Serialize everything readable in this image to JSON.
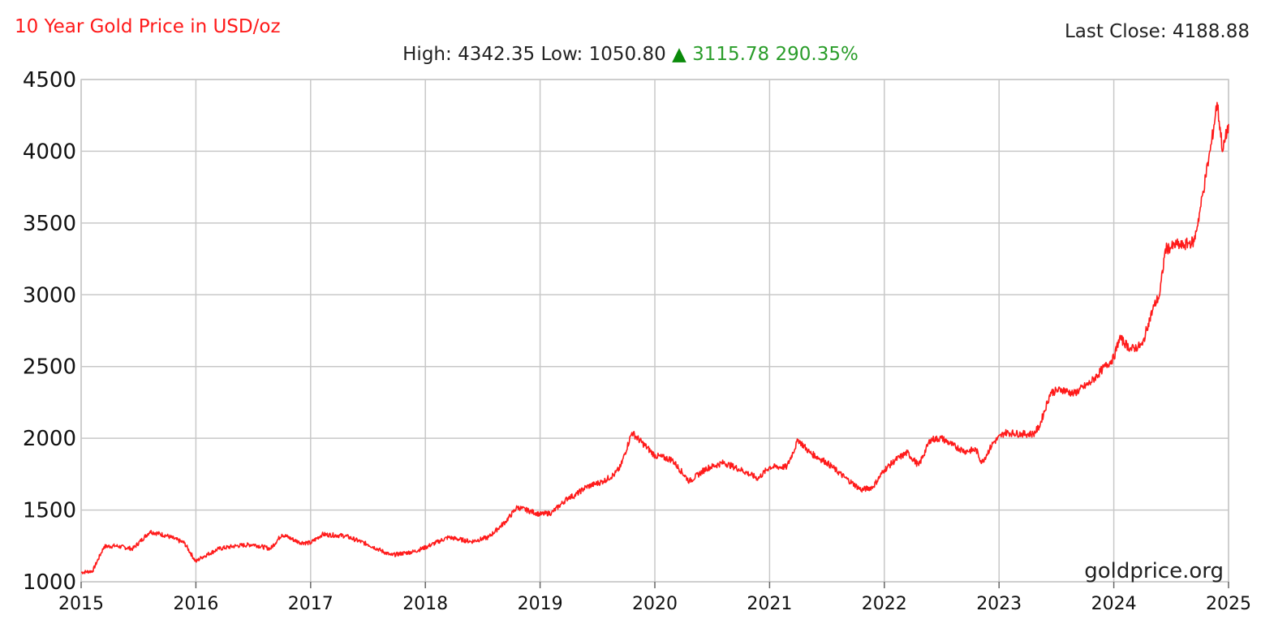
{
  "colors": {
    "series": "#ff1a1a",
    "grid": "#c8c8c8",
    "up": "#2a9d2a",
    "up_arrow": "#0a8a0a"
  },
  "header": {
    "title": "10 Year Gold Price in USD/oz",
    "high_label": "High:",
    "high_value": "4342.35",
    "low_label": "Low:",
    "low_value": "1050.80",
    "change_arrow": "▲",
    "change_value": "3115.78",
    "change_percent": "290.35%",
    "last_close_label": "Last Close:",
    "last_close_value": "4188.88"
  },
  "watermark": "goldprice.org",
  "chart_data": {
    "type": "line",
    "title": "10 Year Gold Price in USD/oz",
    "xlabel": "",
    "ylabel": "",
    "xlim": [
      2015,
      2025
    ],
    "ylim": [
      1000,
      4500
    ],
    "xticks": [
      2015,
      2016,
      2017,
      2018,
      2019,
      2020,
      2021,
      2022,
      2023,
      2024,
      2025
    ],
    "yticks": [
      1000,
      1500,
      2000,
      2500,
      3000,
      3500,
      4000,
      4500
    ],
    "grid": true,
    "series": [
      {
        "x": [
          2015.0,
          2015.1,
          2015.2,
          2015.3,
          2015.45,
          2015.6,
          2015.75,
          2015.9,
          2016.0,
          2016.05,
          2016.2,
          2016.35,
          2016.5,
          2016.65,
          2016.75,
          2016.9,
          2017.0,
          2017.1,
          2017.3,
          2017.5,
          2017.7,
          2017.9,
          2018.0,
          2018.2,
          2018.4,
          2018.55,
          2018.7,
          2018.8,
          2019.0,
          2019.1,
          2019.25,
          2019.3,
          2019.4,
          2019.55,
          2019.65,
          2019.7,
          2019.8,
          2020.0,
          2020.15,
          2020.3,
          2020.45,
          2020.6,
          2020.75,
          2020.9,
          2021.0,
          2021.15,
          2021.25,
          2021.35,
          2021.5,
          2021.65,
          2021.8,
          2021.9,
          2022.0,
          2022.1,
          2022.2,
          2022.3,
          2022.4,
          2022.5,
          2022.6,
          2022.7,
          2022.8,
          2022.85,
          2022.95,
          2023.05,
          2023.2,
          2023.3,
          2023.35,
          2023.45,
          2023.55,
          2023.65,
          2023.8,
          2023.9,
          2024.0,
          2024.05,
          2024.15,
          2024.25,
          2024.3,
          2024.35,
          2024.4,
          2024.45,
          2024.5,
          2024.55,
          2024.6,
          2024.65,
          2024.7,
          2024.75,
          2024.8,
          2024.85,
          2024.9,
          2024.95,
          2025.0
        ],
        "values": [
          1065,
          1075,
          1245,
          1250,
          1230,
          1350,
          1320,
          1270,
          1140,
          1170,
          1230,
          1250,
          1260,
          1230,
          1330,
          1275,
          1270,
          1330,
          1320,
          1260,
          1185,
          1210,
          1240,
          1310,
          1280,
          1310,
          1420,
          1520,
          1470,
          1480,
          1590,
          1600,
          1660,
          1700,
          1750,
          1800,
          2040,
          1880,
          1850,
          1700,
          1790,
          1830,
          1780,
          1720,
          1800,
          1800,
          1990,
          1900,
          1830,
          1730,
          1640,
          1660,
          1780,
          1850,
          1900,
          1810,
          1990,
          2000,
          1950,
          1910,
          1920,
          1830,
          1970,
          2040,
          2030,
          2030,
          2080,
          2320,
          2340,
          2310,
          2390,
          2480,
          2560,
          2700,
          2620,
          2650,
          2800,
          2920,
          3000,
          3320,
          3330,
          3350,
          3340,
          3360,
          3370,
          3580,
          3820,
          4050,
          4340,
          4000,
          4190
        ]
      }
    ]
  }
}
